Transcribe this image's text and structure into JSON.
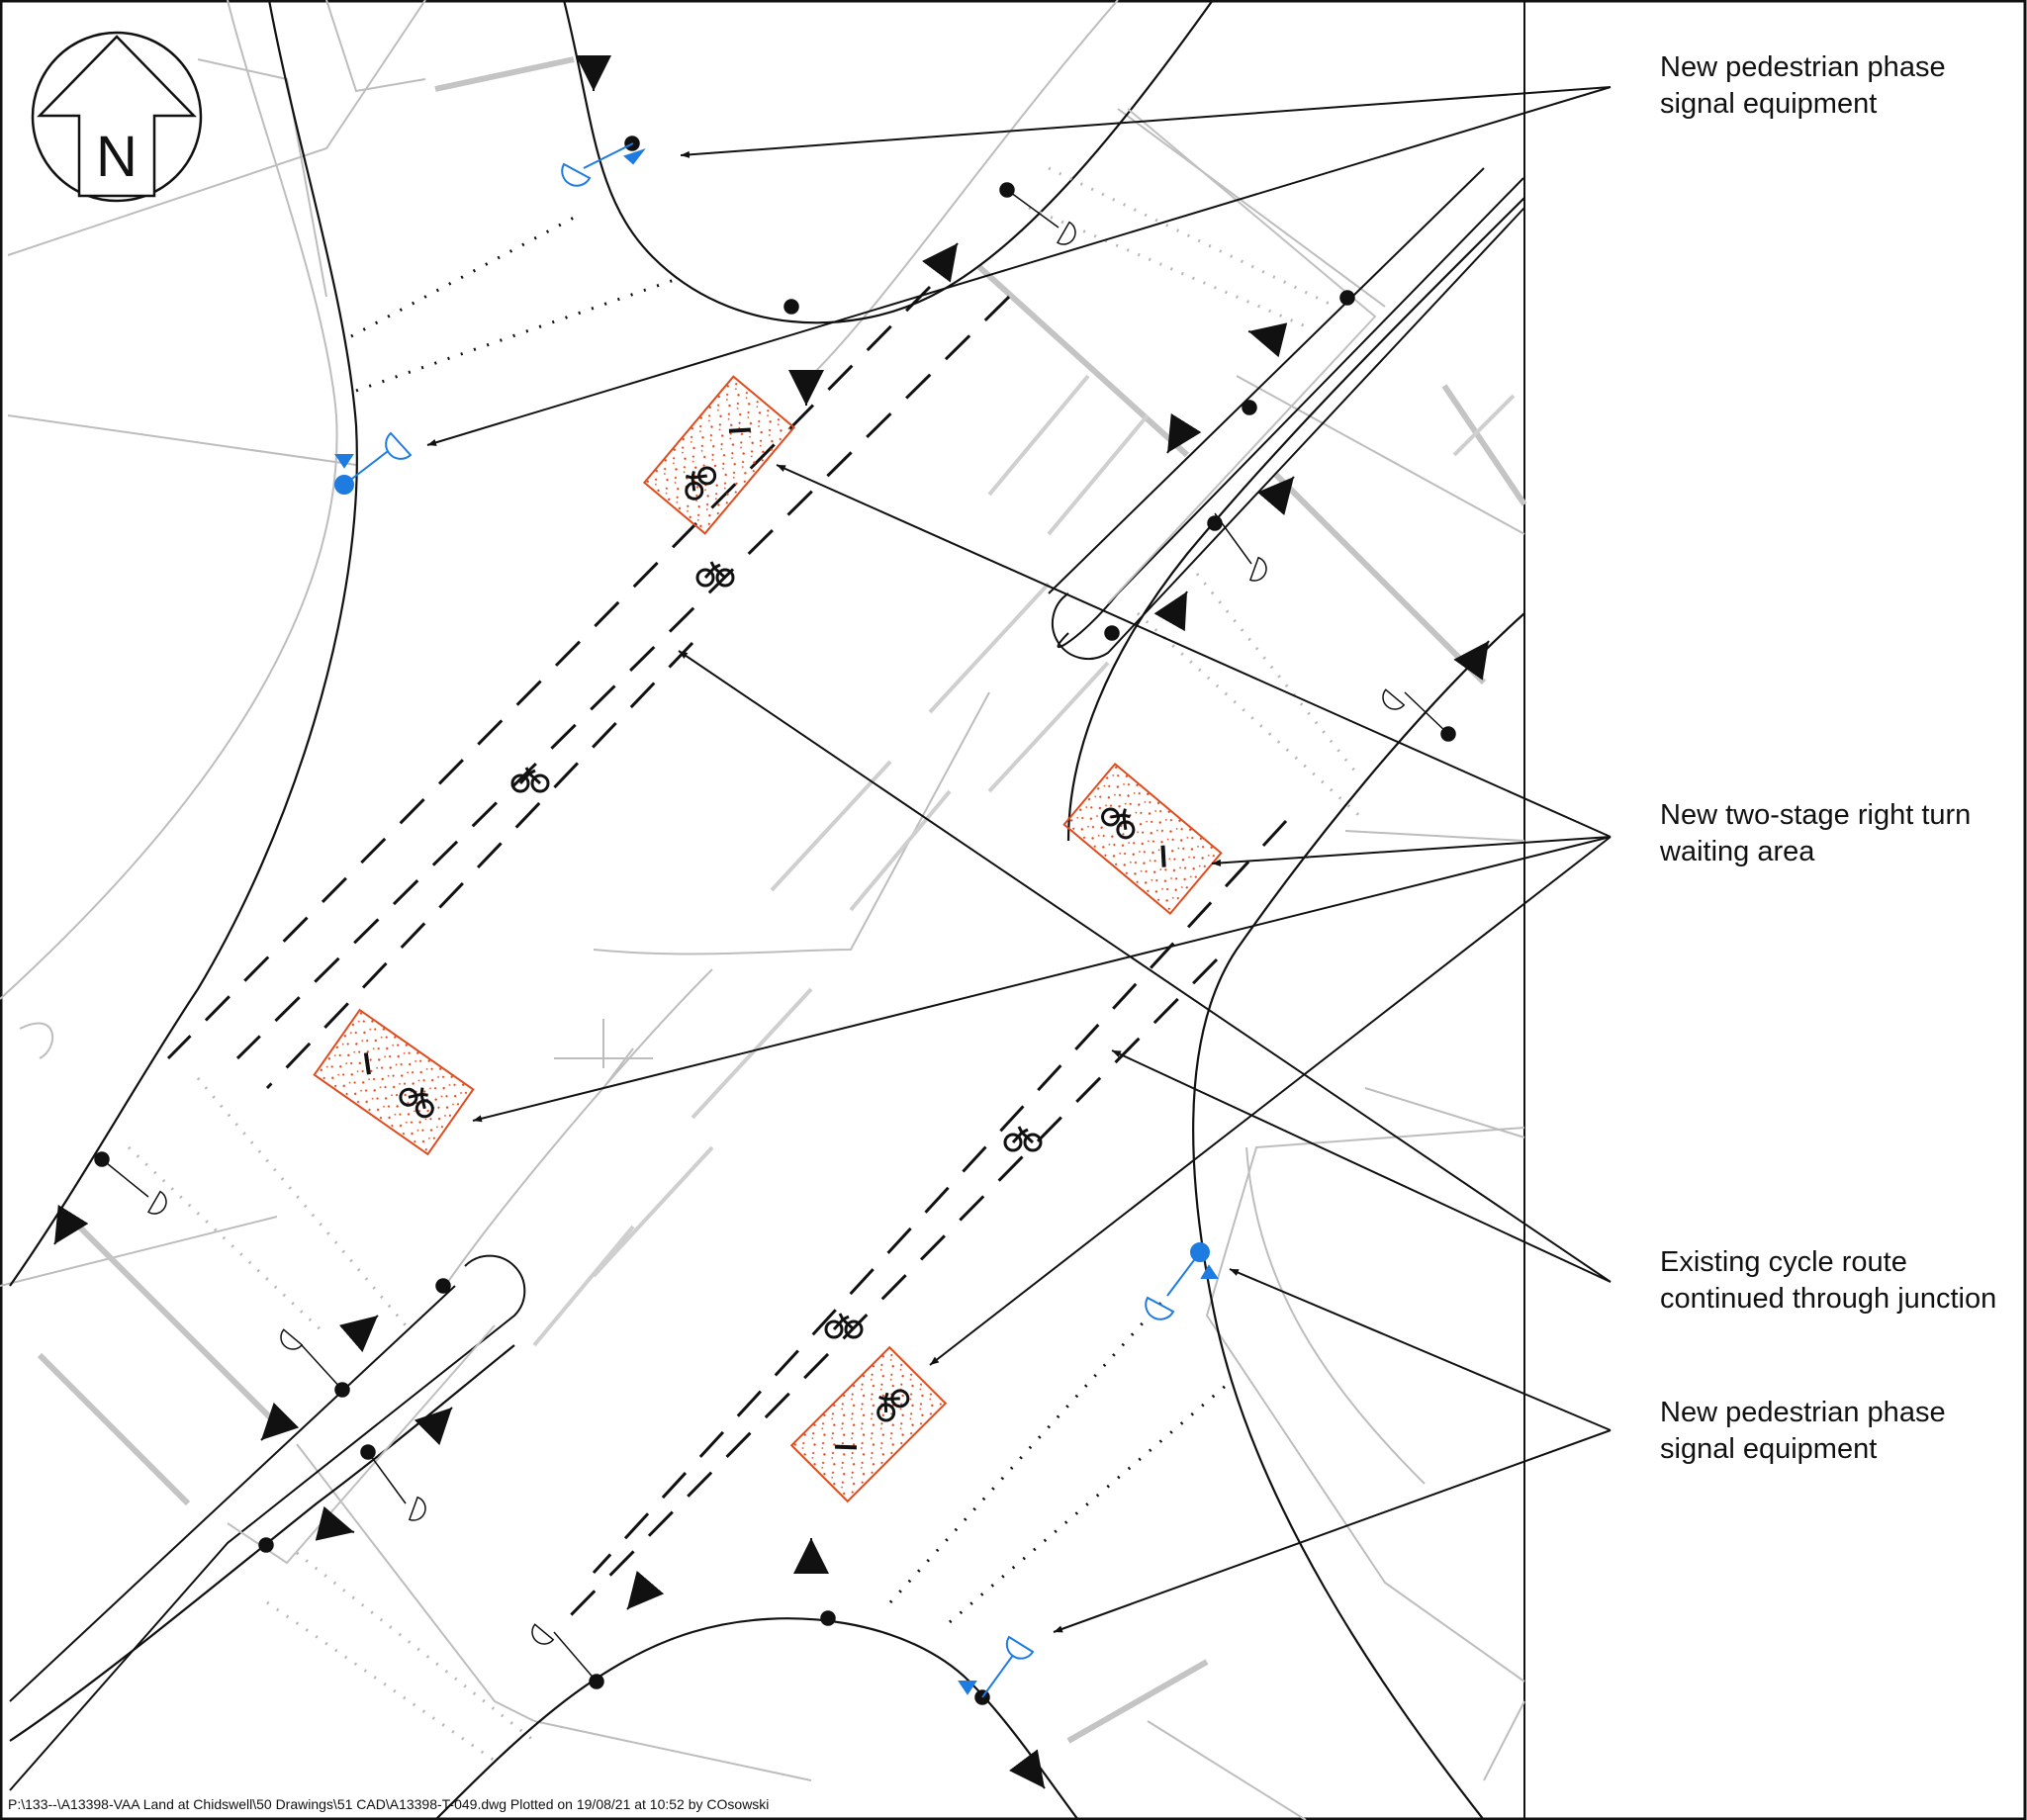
{
  "callouts": {
    "ped_signal_top": {
      "line1": "New pedestrian phase",
      "line2": "signal equipment"
    },
    "two_stage": {
      "line1": "New two-stage right turn",
      "line2": "waiting area"
    },
    "cycle_route": {
      "line1": "Existing cycle route",
      "line2": "continued through junction"
    },
    "ped_signal_bottom": {
      "line1": "New pedestrian phase",
      "line2": "signal equipment"
    }
  },
  "north_arrow": {
    "letter": "N"
  },
  "footer": {
    "file_ref": "P:\\133--\\A13398-VAA Land at Chidswell\\50 Drawings\\51 CAD\\A13398-T-049.dwg Plotted on 19/08/21 at 10:52 by COsowski"
  },
  "colors": {
    "linework": "#111111",
    "background_linework": "#bdbdbd",
    "new_signal_equipment": "#1e7be0",
    "waiting_area": "#e04b1e"
  },
  "icons": [
    "north-arrow-icon",
    "bicycle-icon",
    "signal-head-icon",
    "traffic-arrow-icon",
    "cycle-waiting-box-icon"
  ]
}
